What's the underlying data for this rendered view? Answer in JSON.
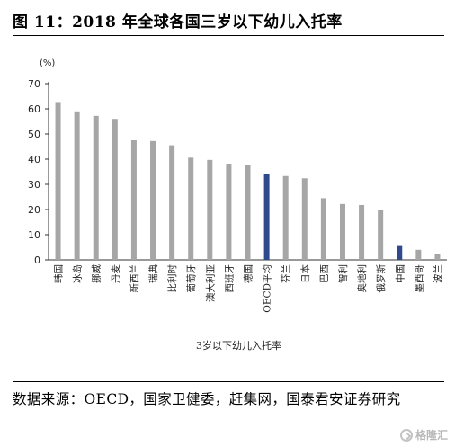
{
  "title": "图 11：2018 年全球各国三岁以下幼儿入托率",
  "source": "数据来源：OECD，国家卫健委，赶集网，国泰君安证券研究",
  "watermark": "格隆汇",
  "chart_data": {
    "type": "bar",
    "title": "图 11：2018 年全球各国三岁以下幼儿入托率",
    "xlabel": "3岁以下幼儿入托率",
    "ylabel": "(%)",
    "ylim": [
      0,
      70
    ],
    "yticks": [
      0,
      10,
      20,
      30,
      40,
      50,
      60,
      70
    ],
    "grid": false,
    "legend": "none",
    "categories": [
      "韩国",
      "冰岛",
      "挪威",
      "丹麦",
      "新西兰",
      "瑞典",
      "比利时",
      "葡萄牙",
      "澳大利亚",
      "西班牙",
      "德国",
      "OECD平均",
      "芬兰",
      "日本",
      "巴西",
      "智利",
      "奥地利",
      "俄罗斯",
      "中国",
      "墨西哥",
      "波兰"
    ],
    "values": [
      62.7,
      59,
      57.2,
      56,
      47.5,
      47.2,
      45.5,
      40.6,
      39.7,
      38.2,
      37.6,
      34,
      33.3,
      32.4,
      24.5,
      22.2,
      21.8,
      20,
      5.5,
      4,
      2.3
    ],
    "highlight": [
      "OECD平均",
      "中国"
    ],
    "colors": {
      "bar": "#a6a6a6",
      "highlight": "#2e4a8c"
    }
  }
}
